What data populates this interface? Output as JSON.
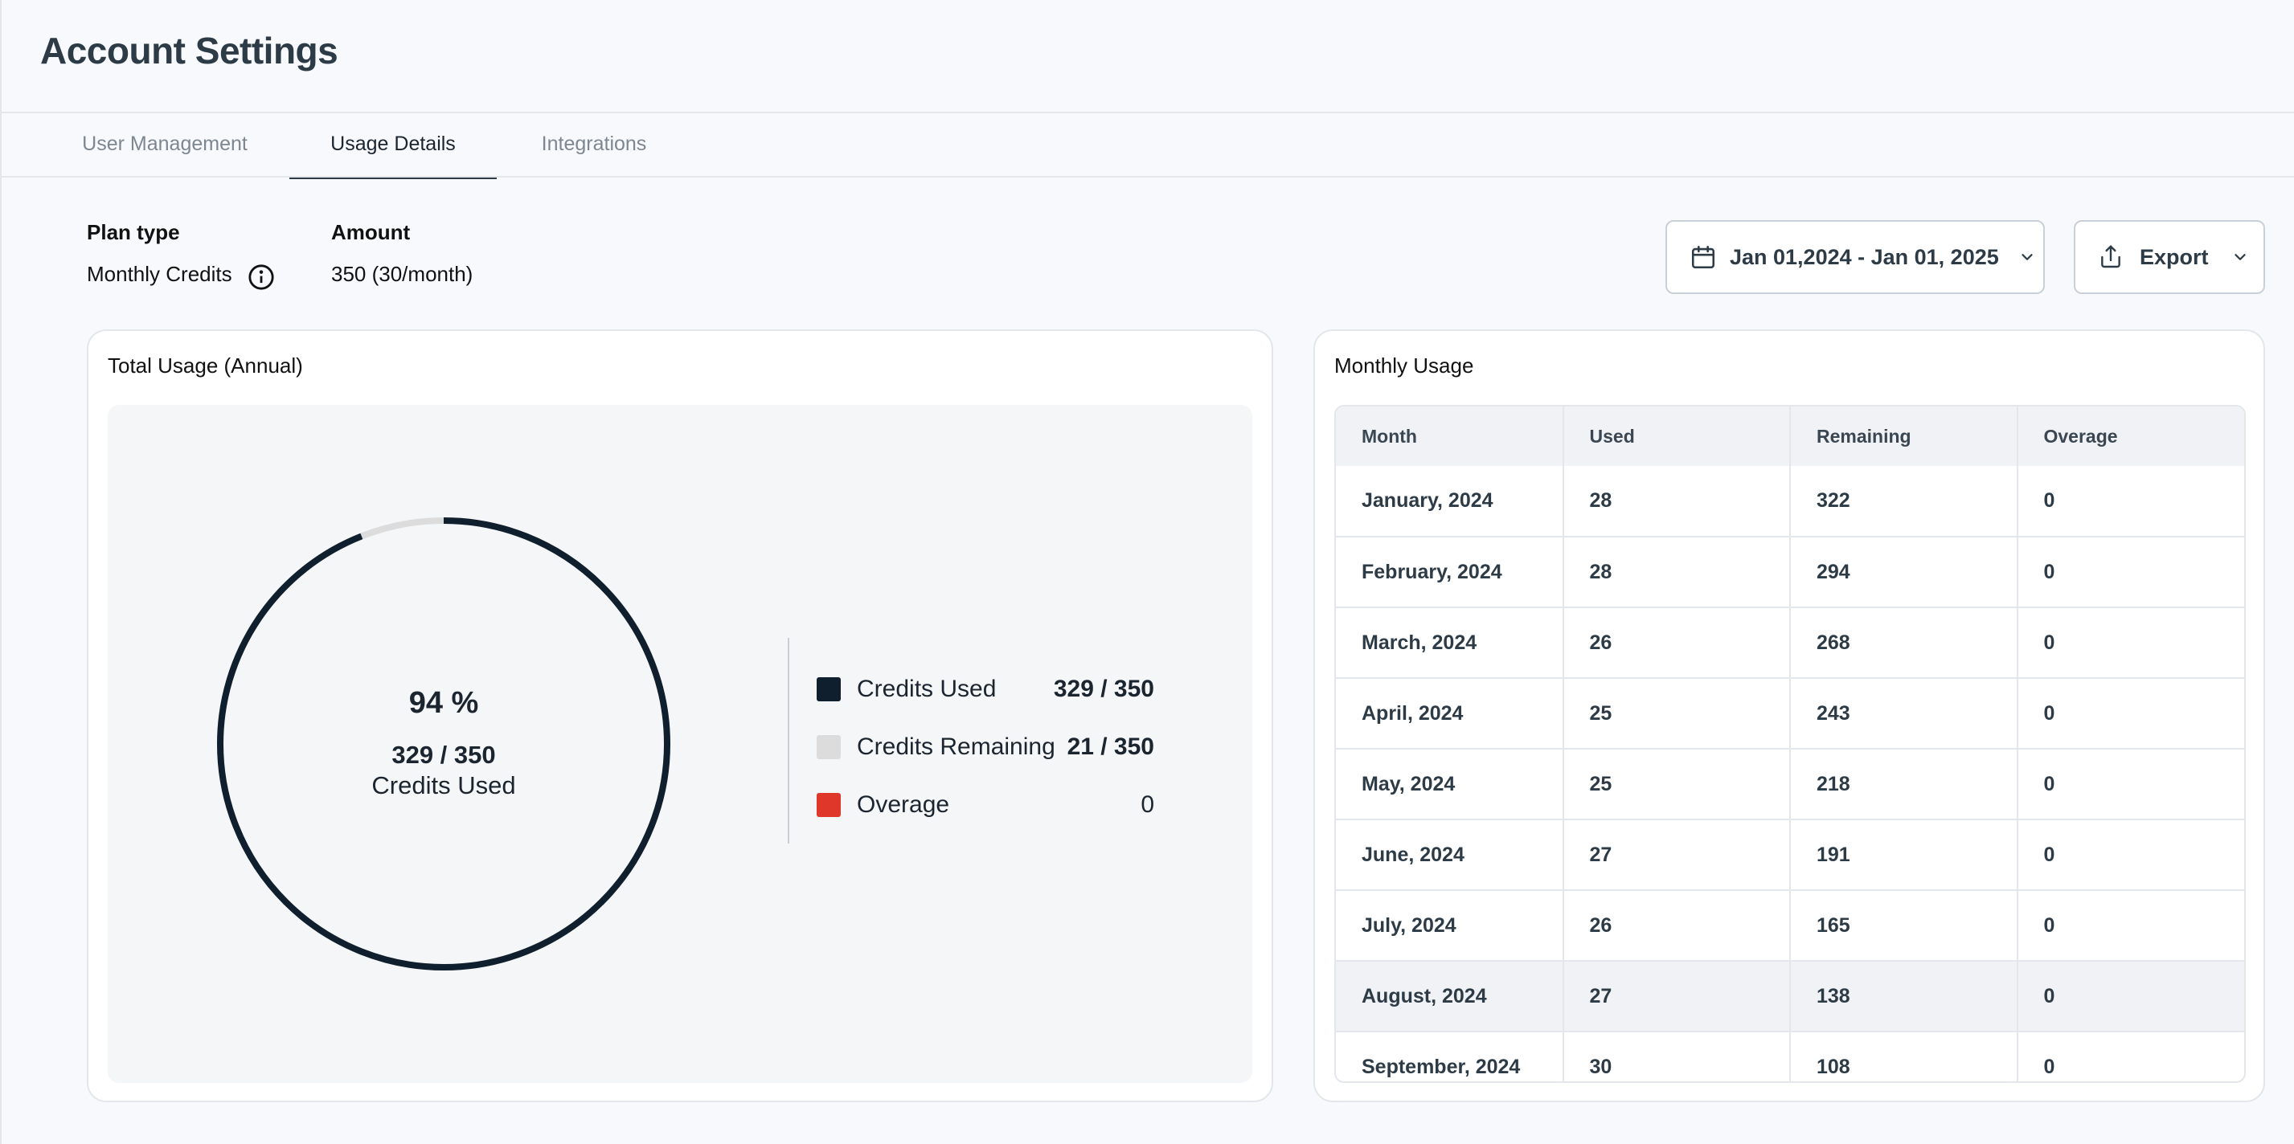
{
  "header": {
    "title": "Account Settings"
  },
  "tabs": [
    {
      "label": "User Management",
      "active": false
    },
    {
      "label": "Usage Details",
      "active": true
    },
    {
      "label": "Integrations",
      "active": false
    }
  ],
  "plan": {
    "plan_type_label": "Plan type",
    "plan_type_value": "Monthly Credits",
    "amount_label": "Amount",
    "amount_value": "350 (30/month)",
    "info_icon": "info-circle-icon"
  },
  "toolbar": {
    "date_range": "Jan 01,2024 - Jan 01, 2025",
    "export_label": "Export"
  },
  "total_usage": {
    "title": "Total Usage (Annual)",
    "percent_text": "94 %",
    "fraction_text": "329 / 350",
    "caption": "Credits Used",
    "used": 329,
    "total": 350,
    "legend": [
      {
        "label": "Credits Used",
        "value": "329 / 350",
        "color": "#0f1f2e"
      },
      {
        "label": "Credits Remaining",
        "value": "21 / 350",
        "color": "#dcdcdc"
      },
      {
        "label": "Overage",
        "value": "0",
        "color": "#e0372b"
      }
    ]
  },
  "monthly_usage": {
    "title": "Monthly Usage",
    "columns": [
      "Month",
      "Used",
      "Remaining",
      "Overage"
    ],
    "rows": [
      [
        "January, 2024",
        "28",
        "322",
        "0"
      ],
      [
        "February, 2024",
        "28",
        "294",
        "0"
      ],
      [
        "March, 2024",
        "26",
        "268",
        "0"
      ],
      [
        "April, 2024",
        "25",
        "243",
        "0"
      ],
      [
        "May, 2024",
        "25",
        "218",
        "0"
      ],
      [
        "June, 2024",
        "27",
        "191",
        "0"
      ],
      [
        "July, 2024",
        "26",
        "165",
        "0"
      ],
      [
        "August, 2024",
        "27",
        "138",
        "0"
      ],
      [
        "September, 2024",
        "30",
        "108",
        "0"
      ]
    ],
    "highlighted_row": "August, 2024"
  },
  "colors": {
    "accent": "#2d3b47",
    "used": "#0f1f2e",
    "remaining": "#dcdcdc",
    "overage": "#e0372b"
  }
}
